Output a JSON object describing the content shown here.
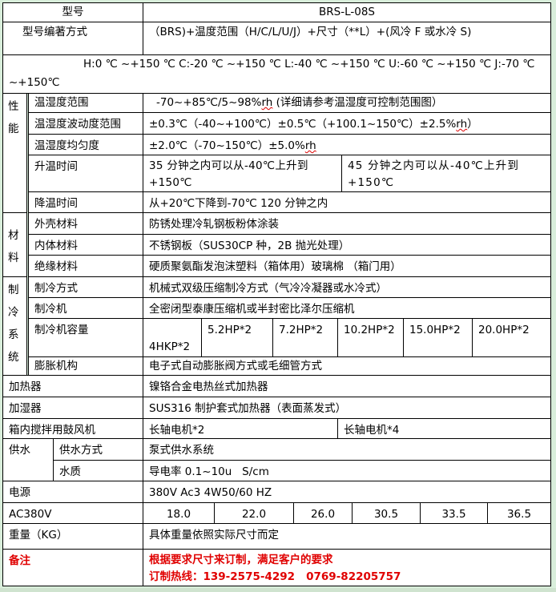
{
  "model": {
    "label": "型号",
    "value": "BRS-L-08S"
  },
  "naming": {
    "label": "型号编著方式",
    "value": "（BRS)+温度范围（H/C/L/U/J）+尺寸（**L）+(风冷 F 或水冷 S)"
  },
  "ranges": "H:0 ℃ ~+150 ℃    C:-20 ℃ ~+150 ℃    L:-40 ℃ ~+150 ℃    U:-60 ℃ ~+150 ℃   J:-70 ℃ ~+150℃",
  "performance": {
    "category": "性能",
    "rows": [
      {
        "label": "温湿度范围",
        "value": "-70~+85℃/5~98%",
        "unit": "rh",
        "after": " (详细请参考温湿度可控制范围图）"
      },
      {
        "label": "温湿度波动度范围",
        "value": "±0.3℃（-40~+100℃）±0.5℃（+100.1~150℃）±2.5%",
        "unit": "rh",
        "after": "）"
      },
      {
        "label": "温湿度均匀度",
        "value": "±2.0℃（-70~150℃）±5.0%",
        "unit": "rh",
        "after": ""
      },
      {
        "label": "升温时间",
        "value_a": "35 分钟之内可以从-40℃上升到+150℃",
        "value_b": "45 分钟之内可以从-40℃上升到+150℃"
      },
      {
        "label": "降温时间",
        "value": "从+20℃下降到-70℃  120 分钟之内"
      }
    ]
  },
  "materials": {
    "category": "材料",
    "rows": [
      {
        "label": "外壳材料",
        "value": "防锈处理冷轧钢板粉体涂装"
      },
      {
        "label": "内体材料",
        "value": "不锈钢板（SUS30CP 种，2B 抛光处理）"
      },
      {
        "label": "绝缘材料",
        "value": "硬质聚氨酯发泡沫塑料（箱体用）玻璃棉 （箱门用）"
      }
    ]
  },
  "refrigeration": {
    "category": "制冷系统",
    "rows": [
      {
        "label": "制冷方式",
        "value": " 机械式双级压缩制冷方式（气冷冷凝器或水冷式）"
      },
      {
        "label": "制冷机",
        "value": "全密闭型泰康压缩机或半封密比泽尔压缩机"
      },
      {
        "label": "制冷机容量",
        "values": [
          "4HKP*2",
          "5.2HP*2",
          "7.2HP*2",
          "10.2HP*2",
          "15.0HP*2",
          "20.0HP*2"
        ]
      },
      {
        "label": "膨胀机构",
        "value": "电子式自动膨胀阀方式或毛细管方式"
      }
    ]
  },
  "heater": {
    "label": "加热器",
    "value": "镍铬合金电热丝式加热器"
  },
  "humidifier": {
    "label": "加湿器",
    "value": "SUS316 制护套式加热器（表面蒸发式）"
  },
  "blower": {
    "label": "箱内搅拌用鼓风机",
    "values": [
      "长轴电机*2",
      "长轴电机*4"
    ]
  },
  "water": {
    "category": "供水",
    "rows": [
      {
        "label": "供水方式",
        "value": "泵式供水系统"
      },
      {
        "label": "水质",
        "value": "导电率 0.1~10u   S/cm"
      }
    ]
  },
  "power": {
    "label": "电源",
    "value": "380V Ac3 4W50/60 HZ"
  },
  "ac380": {
    "label": "AC380V",
    "values": [
      "18.0",
      "22.0",
      "26.0",
      "30.5",
      "33.5",
      "36.5"
    ]
  },
  "weight": {
    "label": "重量（KG）",
    "value": "具体重量依照实际尺寸而定"
  },
  "notes": {
    "label": "备注",
    "line1": "根据要求尺寸来订制，满足客户的要求",
    "line2": "订制热线：139-2575-4292   0769-82205757",
    "color": "#e00000"
  }
}
